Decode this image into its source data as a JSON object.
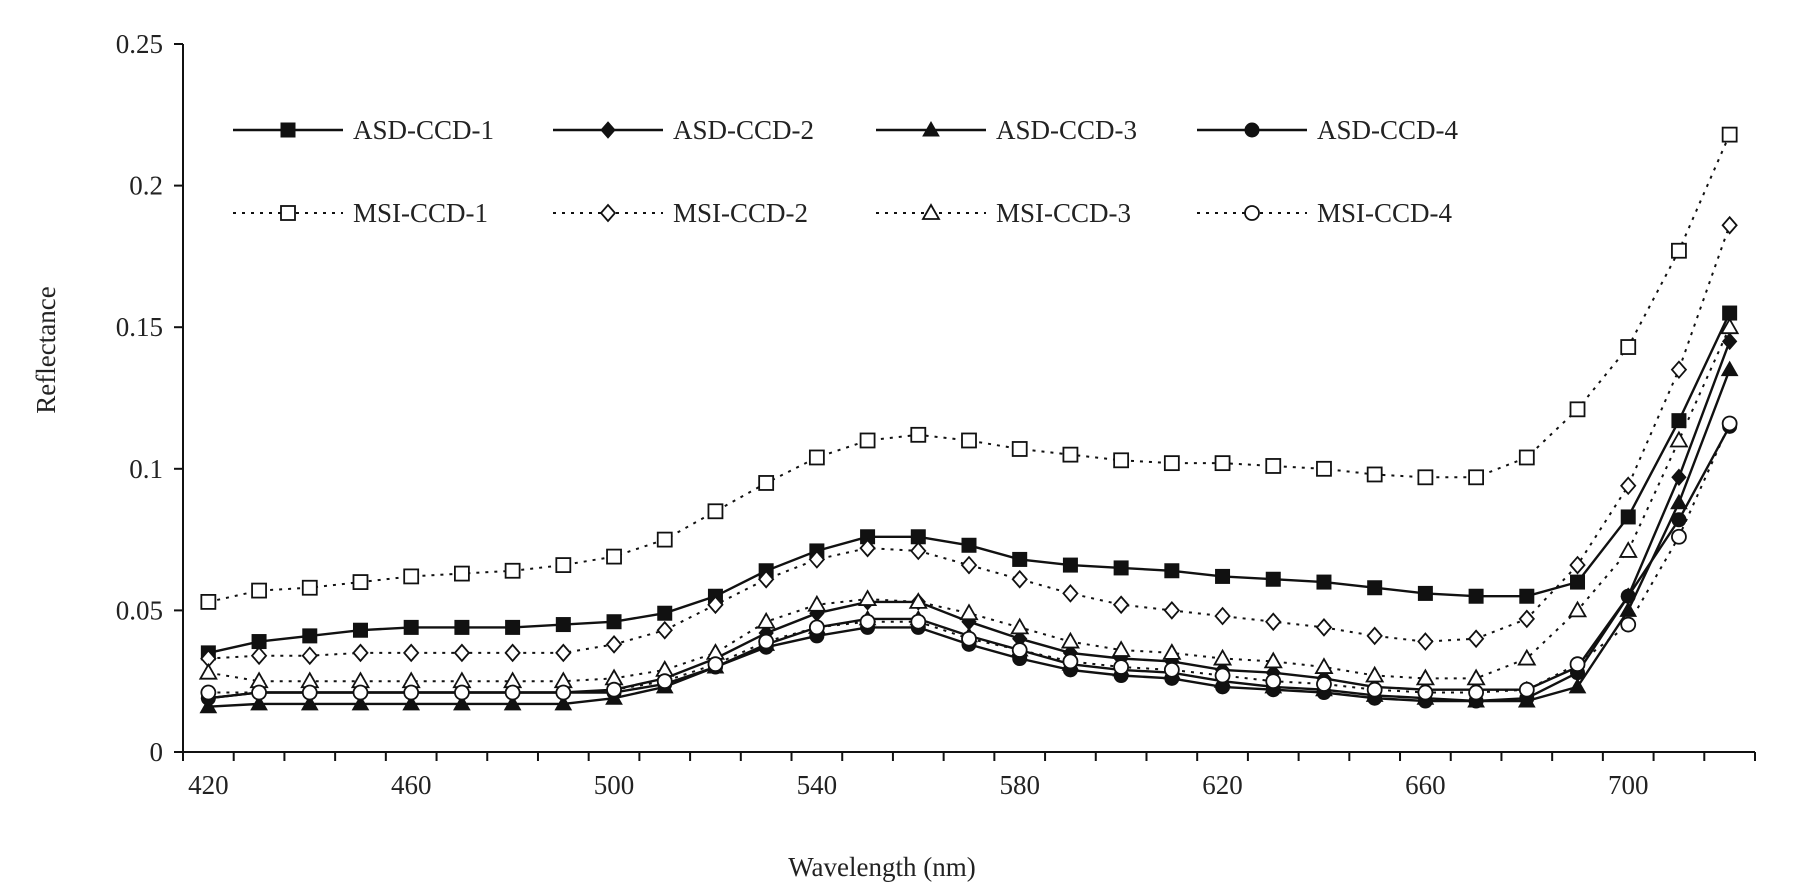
{
  "chart_data": {
    "type": "line",
    "xlabel": "Wavelength (nm)",
    "ylabel": "Reflectance",
    "xlim": [
      415,
      725
    ],
    "ylim": [
      0,
      0.25
    ],
    "x_ticks": [
      420,
      460,
      500,
      540,
      580,
      620,
      660,
      700
    ],
    "y_ticks": [
      0,
      0.05,
      0.1,
      0.15,
      0.2,
      0.25
    ],
    "y_tick_labels": [
      "0",
      "0.05",
      "0.1",
      "0.15",
      "0.2",
      "0.25"
    ],
    "x_minor_step": 10,
    "grid": false,
    "legend_position": "top-left, inside plot",
    "x": [
      420,
      430,
      440,
      450,
      460,
      470,
      480,
      490,
      500,
      510,
      520,
      530,
      540,
      550,
      560,
      570,
      580,
      590,
      600,
      610,
      620,
      630,
      640,
      650,
      660,
      670,
      680,
      690,
      700,
      710,
      720
    ],
    "series": [
      {
        "name": "ASD-CCD-1",
        "line": "solid",
        "marker": "square",
        "filled": true,
        "values": [
          0.035,
          0.039,
          0.041,
          0.043,
          0.044,
          0.044,
          0.044,
          0.045,
          0.046,
          0.049,
          0.055,
          0.064,
          0.071,
          0.076,
          0.076,
          0.073,
          0.068,
          0.066,
          0.065,
          0.064,
          0.062,
          0.061,
          0.06,
          0.058,
          0.056,
          0.055,
          0.055,
          0.06,
          0.083,
          0.117,
          0.155
        ]
      },
      {
        "name": "ASD-CCD-2",
        "line": "solid",
        "marker": "diamond",
        "filled": true,
        "values": [
          0.019,
          0.021,
          0.021,
          0.021,
          0.021,
          0.021,
          0.021,
          0.021,
          0.022,
          0.026,
          0.033,
          0.042,
          0.049,
          0.053,
          0.053,
          0.046,
          0.04,
          0.035,
          0.033,
          0.032,
          0.029,
          0.028,
          0.026,
          0.023,
          0.022,
          0.022,
          0.022,
          0.03,
          0.055,
          0.097,
          0.145
        ]
      },
      {
        "name": "ASD-CCD-3",
        "line": "solid",
        "marker": "triangle",
        "filled": true,
        "values": [
          0.016,
          0.017,
          0.017,
          0.017,
          0.017,
          0.017,
          0.017,
          0.017,
          0.019,
          0.023,
          0.03,
          0.038,
          0.044,
          0.047,
          0.047,
          0.041,
          0.036,
          0.031,
          0.029,
          0.028,
          0.025,
          0.023,
          0.022,
          0.02,
          0.019,
          0.018,
          0.018,
          0.023,
          0.05,
          0.088,
          0.135
        ]
      },
      {
        "name": "ASD-CCD-4",
        "line": "solid",
        "marker": "circle",
        "filled": true,
        "values": [
          0.019,
          0.021,
          0.021,
          0.021,
          0.021,
          0.021,
          0.021,
          0.021,
          0.021,
          0.024,
          0.03,
          0.037,
          0.041,
          0.044,
          0.044,
          0.038,
          0.033,
          0.029,
          0.027,
          0.026,
          0.023,
          0.022,
          0.021,
          0.019,
          0.018,
          0.018,
          0.019,
          0.028,
          0.055,
          0.082,
          0.115
        ]
      },
      {
        "name": "MSI-CCD-1",
        "line": "dotted",
        "marker": "square",
        "filled": false,
        "values": [
          0.053,
          0.057,
          0.058,
          0.06,
          0.062,
          0.063,
          0.064,
          0.066,
          0.069,
          0.075,
          0.085,
          0.095,
          0.104,
          0.11,
          0.112,
          0.11,
          0.107,
          0.105,
          0.103,
          0.102,
          0.102,
          0.101,
          0.1,
          0.098,
          0.097,
          0.097,
          0.104,
          0.121,
          0.143,
          0.177,
          0.218
        ]
      },
      {
        "name": "MSI-CCD-2",
        "line": "dotted",
        "marker": "diamond",
        "filled": false,
        "values": [
          0.033,
          0.034,
          0.034,
          0.035,
          0.035,
          0.035,
          0.035,
          0.035,
          0.038,
          0.043,
          0.052,
          0.061,
          0.068,
          0.072,
          0.071,
          0.066,
          0.061,
          0.056,
          0.052,
          0.05,
          0.048,
          0.046,
          0.044,
          0.041,
          0.039,
          0.04,
          0.047,
          0.066,
          0.094,
          0.135,
          0.186
        ]
      },
      {
        "name": "MSI-CCD-3",
        "line": "dotted",
        "marker": "triangle",
        "filled": false,
        "values": [
          0.028,
          0.025,
          0.025,
          0.025,
          0.025,
          0.025,
          0.025,
          0.025,
          0.026,
          0.029,
          0.035,
          0.046,
          0.052,
          0.054,
          0.053,
          0.049,
          0.044,
          0.039,
          0.036,
          0.035,
          0.033,
          0.032,
          0.03,
          0.027,
          0.026,
          0.026,
          0.033,
          0.05,
          0.071,
          0.11,
          0.15
        ]
      },
      {
        "name": "MSI-CCD-4",
        "line": "dotted",
        "marker": "circle",
        "filled": false,
        "values": [
          0.021,
          0.021,
          0.021,
          0.021,
          0.021,
          0.021,
          0.021,
          0.021,
          0.022,
          0.025,
          0.031,
          0.039,
          0.044,
          0.046,
          0.046,
          0.04,
          0.036,
          0.032,
          0.03,
          0.029,
          0.027,
          0.025,
          0.024,
          0.022,
          0.021,
          0.021,
          0.022,
          0.031,
          0.045,
          0.076,
          0.116
        ]
      }
    ]
  }
}
